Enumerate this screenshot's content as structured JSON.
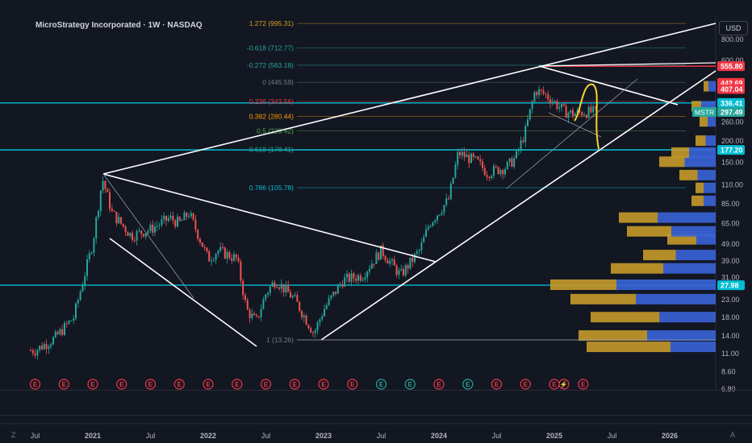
{
  "header": {
    "title": "MicroStrategy Incorporated · 1W · NASDAQ",
    "currency": "USD"
  },
  "footer": {
    "timezone_icon": "Z",
    "auto_scale": "A"
  },
  "colors": {
    "background": "#131722",
    "up": "#26a69a",
    "down": "#ef5350",
    "cyan": "#00bcd4",
    "volume_up": "#3a64d8",
    "volume_down": "#c69a2a",
    "fib_gold": "#d4a017",
    "red_level": "#f23645"
  },
  "icons": [
    "earnings-icon",
    "dividend-icon",
    "split-icon"
  ],
  "chart_data": {
    "type": "candlestick",
    "symbol": "MicroStrategy Incorporated",
    "interval": "1W",
    "exchange": "NASDAQ",
    "y_scale": "log",
    "y_axis_ticks": [
      800,
      600,
      260,
      200,
      150,
      110,
      85,
      65,
      49,
      39,
      31,
      23,
      18,
      14,
      11,
      8.6,
      6.8
    ],
    "x_axis_ticks": [
      "Jul",
      "2021",
      "Jul",
      "2022",
      "Jul",
      "2023",
      "Jul",
      "2024",
      "Jul",
      "2025",
      "Jul",
      "2026"
    ],
    "price_labels": [
      {
        "text": "555.80",
        "color": "#f23645"
      },
      {
        "text": "442.69",
        "color": "#f23645"
      },
      {
        "text": "407.04",
        "color": "#f23645"
      },
      {
        "text": "336.41",
        "color": "#00bcd4"
      },
      {
        "text": "297.49",
        "color": "#26a69a",
        "symbol": "MSTR"
      },
      {
        "text": "177.20",
        "color": "#00bcd4"
      },
      {
        "text": "27.98",
        "color": "#00bcd4"
      }
    ],
    "fib_levels": [
      {
        "label": "1.272 (995.31)",
        "price": 995.31,
        "color": "#d4a017"
      },
      {
        "label": "-0.618 (712.77)",
        "price": 712.77,
        "color": "#26a69a"
      },
      {
        "label": "-0.272 (563.18)",
        "price": 563.18,
        "color": "#26a69a"
      },
      {
        "label": "0 (445.59)",
        "price": 445.59,
        "color": "#787b86"
      },
      {
        "label": "0.236 (343.56)",
        "price": 343.56,
        "color": "#f23645"
      },
      {
        "label": "0.382 (280.44)",
        "price": 280.44,
        "color": "#ff9800"
      },
      {
        "label": "0.5 (229.42)",
        "price": 229.42,
        "color": "#4caf50"
      },
      {
        "label": "0.618 (178.41)",
        "price": 178.41,
        "color": "#26a69a"
      },
      {
        "label": "0.786 (105.78)",
        "price": 105.78,
        "color": "#00bcd4"
      },
      {
        "label": "1 (13.26)",
        "price": 13.26,
        "color": "#787b86"
      }
    ],
    "horizontal_lines": [
      {
        "price": 555.8,
        "color": "#f23645"
      },
      {
        "price": 336.41,
        "color": "#00bcd4"
      },
      {
        "price": 177.2,
        "color": "#00bcd4"
      },
      {
        "price": 27.98,
        "color": "#00bcd4"
      }
    ],
    "price_path": [
      [
        "2020-07",
        11.5
      ],
      [
        "2020-09",
        13.5
      ],
      [
        "2020-11",
        18
      ],
      [
        "2020-12",
        30
      ],
      [
        "2021-01",
        50
      ],
      [
        "2021-02",
        120
      ],
      [
        "2021-03",
        75
      ],
      [
        "2021-05",
        55
      ],
      [
        "2021-07",
        60
      ],
      [
        "2021-09",
        70
      ],
      [
        "2021-10",
        65
      ],
      [
        "2021-11",
        75
      ],
      [
        "2021-12",
        55
      ],
      [
        "2022-01",
        40
      ],
      [
        "2022-02",
        45
      ],
      [
        "2022-04",
        40
      ],
      [
        "2022-05",
        20
      ],
      [
        "2022-06",
        17
      ],
      [
        "2022-07",
        25
      ],
      [
        "2022-08",
        30
      ],
      [
        "2022-10",
        23
      ],
      [
        "2022-12",
        14.5
      ],
      [
        "2023-01",
        20
      ],
      [
        "2023-03",
        30
      ],
      [
        "2023-05",
        32
      ],
      [
        "2023-07",
        45
      ],
      [
        "2023-09",
        32
      ],
      [
        "2023-11",
        45
      ],
      [
        "2023-12",
        65
      ],
      [
        "2024-02",
        90
      ],
      [
        "2024-03",
        170
      ],
      [
        "2024-05",
        150
      ],
      [
        "2024-06",
        130
      ],
      [
        "2024-08",
        140
      ],
      [
        "2024-09",
        160
      ],
      [
        "2024-10",
        230
      ],
      [
        "2024-11",
        400
      ],
      [
        "2024-12",
        380
      ],
      [
        "2025-01",
        340
      ],
      [
        "2025-02",
        300
      ],
      [
        "2025-03",
        290
      ],
      [
        "2025-04",
        297.49
      ]
    ],
    "volume_profile_visible": true,
    "event_markers": [
      {
        "date": "2020-07",
        "type": "earnings"
      },
      {
        "date": "2020-10",
        "type": "earnings"
      },
      {
        "date": "2021-01",
        "type": "earnings"
      },
      {
        "date": "2021-04",
        "type": "earnings"
      },
      {
        "date": "2021-07",
        "type": "earnings"
      },
      {
        "date": "2021-10",
        "type": "earnings"
      },
      {
        "date": "2022-01",
        "type": "earnings"
      },
      {
        "date": "2022-04",
        "type": "earnings"
      },
      {
        "date": "2022-07",
        "type": "earnings"
      },
      {
        "date": "2022-10",
        "type": "earnings"
      },
      {
        "date": "2023-01",
        "type": "earnings"
      },
      {
        "date": "2023-04",
        "type": "earnings"
      },
      {
        "date": "2023-07",
        "type": "dividend"
      },
      {
        "date": "2023-10",
        "type": "dividend"
      },
      {
        "date": "2024-01",
        "type": "earnings"
      },
      {
        "date": "2024-04",
        "type": "dividend"
      },
      {
        "date": "2024-07",
        "type": "earnings"
      },
      {
        "date": "2024-10",
        "type": "earnings"
      },
      {
        "date": "2025-01",
        "type": "earnings"
      },
      {
        "date": "2025-02",
        "type": "split"
      },
      {
        "date": "2025-04",
        "type": "earnings"
      }
    ]
  }
}
